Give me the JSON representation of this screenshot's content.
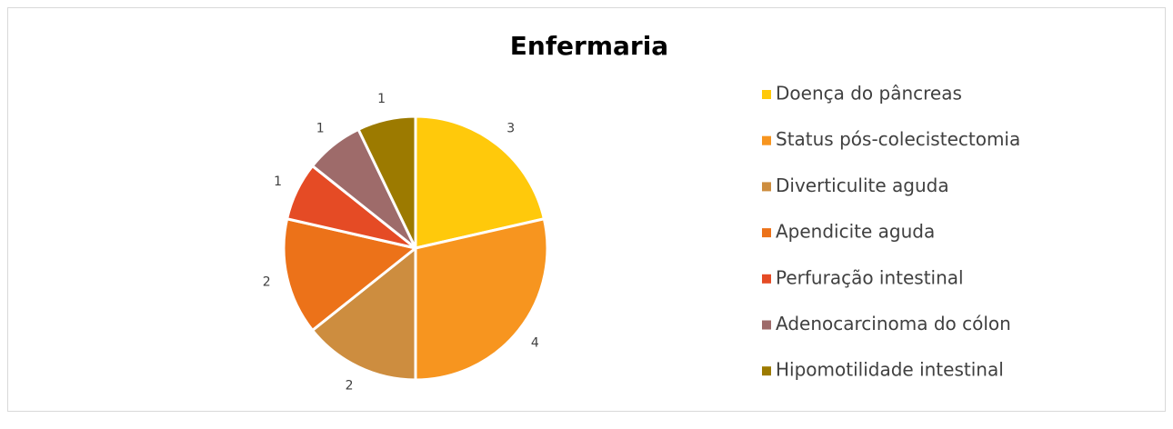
{
  "chart_data": {
    "type": "pie",
    "title": "Enfermaria",
    "categories": [
      "Doença do pâncreas",
      "Status pós-colecistectomia",
      "Diverticulite aguda",
      "Apendicite aguda",
      "Perfuração intestinal",
      "Adenocarcinoma do cólon",
      "Hipomotilidade intestinal"
    ],
    "values": [
      3,
      4,
      2,
      2,
      1,
      1,
      1
    ],
    "colors": [
      "#FFC90B",
      "#F7951F",
      "#CD8D3F",
      "#EC7219",
      "#E54B25",
      "#9E6B6A",
      "#9C7A00"
    ],
    "legend": "right"
  }
}
